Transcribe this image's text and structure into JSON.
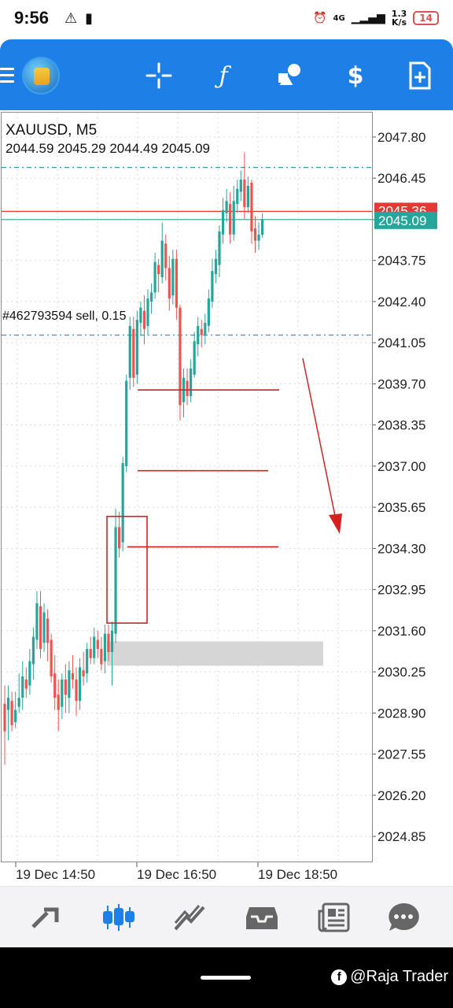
{
  "status_bar": {
    "time": "9:56",
    "left_icons": [
      "warning-icon",
      "battery-saver-icon"
    ],
    "network_speed_value": "1.3",
    "network_speed_unit": "K/s",
    "network_type": "4G",
    "battery": "14"
  },
  "toolbar": {
    "buttons": [
      "menu-icon",
      "app-logo",
      "crosshair-icon",
      "function-icon",
      "objects-icon",
      "trade-icon",
      "new-order-icon"
    ]
  },
  "chart": {
    "symbol": "XAUUSD, M5",
    "ohlc": "2044.59 2045.29 2044.49 2045.09",
    "order_label": "#462793594 sell, 0.15",
    "price_labels": [
      "2047.80",
      "2046.45",
      "2045.09",
      "2043.75",
      "2042.40",
      "2041.05",
      "2039.70",
      "2038.35",
      "2037.00",
      "2035.65",
      "2034.30",
      "2032.95",
      "2031.60",
      "2030.25",
      "2028.90",
      "2027.55",
      "2026.20",
      "2024.85"
    ],
    "current_bid": "2045.09",
    "current_ask": "2045.36",
    "time_labels": [
      "19 Dec 14:50",
      "19 Dec 16:50",
      "19 Dec 18:50"
    ],
    "colors": {
      "bull": "#26a69a",
      "bear": "#ef5350",
      "annotation": "#d62020",
      "bid_label": "#26a69a",
      "ask_label": "#e53935",
      "grid": "#d8d8d8",
      "zone": "#d6d6d6"
    }
  },
  "chart_data": {
    "type": "candlestick",
    "symbol": "XAUUSD",
    "timeframe": "M5",
    "ylim": [
      2024.0,
      2048.6
    ],
    "y_ticks": [
      2047.8,
      2046.45,
      2045.09,
      2043.75,
      2042.4,
      2041.05,
      2039.7,
      2038.35,
      2037.0,
      2035.65,
      2034.3,
      2032.95,
      2031.6,
      2030.25,
      2028.9,
      2027.55,
      2026.2,
      2024.85
    ],
    "x_labels": [
      "19 Dec 14:50",
      "19 Dec 16:50",
      "19 Dec 18:50"
    ],
    "candles": [
      [
        2029.2,
        2028.3,
        2027.2,
        2029.8
      ],
      [
        2029.0,
        2029.4,
        2028.0,
        2029.8
      ],
      [
        2029.3,
        2028.5,
        2028.3,
        2029.6
      ],
      [
        2028.6,
        2029.0,
        2028.4,
        2029.6
      ],
      [
        2029.1,
        2029.4,
        2028.9,
        2030.2
      ],
      [
        2029.4,
        2030.1,
        2029.0,
        2030.6
      ],
      [
        2030.0,
        2029.7,
        2029.4,
        2030.4
      ],
      [
        2029.8,
        2030.6,
        2029.5,
        2031.0
      ],
      [
        2030.5,
        2031.4,
        2030.0,
        2031.7
      ],
      [
        2031.3,
        2032.5,
        2031.0,
        2032.9
      ],
      [
        2032.4,
        2031.0,
        2030.7,
        2032.9
      ],
      [
        2031.2,
        2032.2,
        2030.9,
        2032.5
      ],
      [
        2032.0,
        2031.2,
        2030.6,
        2032.3
      ],
      [
        2031.3,
        2030.1,
        2029.9,
        2031.5
      ],
      [
        2030.2,
        2029.4,
        2029.0,
        2030.8
      ],
      [
        2029.5,
        2029.0,
        2028.3,
        2030.0
      ],
      [
        2029.1,
        2030.0,
        2028.7,
        2030.2
      ],
      [
        2030.0,
        2029.5,
        2028.9,
        2030.5
      ],
      [
        2029.4,
        2030.3,
        2028.9,
        2030.6
      ],
      [
        2030.2,
        2030.0,
        2029.7,
        2030.8
      ],
      [
        2030.0,
        2029.3,
        2028.8,
        2030.4
      ],
      [
        2029.3,
        2030.4,
        2029.0,
        2030.7
      ],
      [
        2030.3,
        2030.1,
        2029.8,
        2030.9
      ],
      [
        2030.2,
        2031.0,
        2029.9,
        2031.2
      ],
      [
        2031.0,
        2030.7,
        2030.5,
        2031.4
      ],
      [
        2030.7,
        2031.4,
        2030.5,
        2031.7
      ],
      [
        2031.3,
        2031.0,
        2030.7,
        2031.6
      ],
      [
        2031.0,
        2030.5,
        2030.3,
        2031.4
      ],
      [
        2030.6,
        2031.5,
        2030.2,
        2031.8
      ],
      [
        2031.5,
        2030.9,
        2030.6,
        2031.8
      ],
      [
        2030.9,
        2031.6,
        2029.8,
        2031.9
      ],
      [
        2031.5,
        2035.0,
        2031.2,
        2035.6
      ],
      [
        2035.0,
        2034.3,
        2034.0,
        2035.5
      ],
      [
        2034.5,
        2037.1,
        2034.2,
        2037.3
      ],
      [
        2037.0,
        2039.8,
        2036.8,
        2040.0
      ],
      [
        2039.9,
        2041.6,
        2039.5,
        2041.9
      ],
      [
        2041.5,
        2039.9,
        2039.6,
        2041.9
      ],
      [
        2040.0,
        2041.8,
        2039.7,
        2042.1
      ],
      [
        2041.7,
        2042.2,
        2041.3,
        2042.4
      ],
      [
        2042.1,
        2041.5,
        2041.0,
        2042.6
      ],
      [
        2041.6,
        2042.5,
        2041.3,
        2042.8
      ],
      [
        2042.4,
        2042.7,
        2042.0,
        2043.0
      ],
      [
        2042.7,
        2043.7,
        2042.5,
        2044.0
      ],
      [
        2043.6,
        2043.3,
        2042.7,
        2043.8
      ],
      [
        2043.2,
        2044.4,
        2043.0,
        2045.0
      ],
      [
        2044.3,
        2043.5,
        2043.1,
        2044.6
      ],
      [
        2043.5,
        2042.5,
        2042.1,
        2043.9
      ],
      [
        2042.6,
        2043.8,
        2042.3,
        2044.1
      ],
      [
        2043.8,
        2042.2,
        2041.8,
        2044.1
      ],
      [
        2042.2,
        2039.0,
        2038.5,
        2042.3
      ],
      [
        2039.1,
        2039.9,
        2038.6,
        2040.2
      ],
      [
        2039.8,
        2039.3,
        2039.0,
        2040.2
      ],
      [
        2039.3,
        2040.2,
        2039.1,
        2040.5
      ],
      [
        2040.0,
        2041.1,
        2039.9,
        2041.4
      ],
      [
        2041.0,
        2041.6,
        2040.6,
        2041.9
      ],
      [
        2041.5,
        2041.3,
        2040.9,
        2041.8
      ],
      [
        2041.3,
        2041.7,
        2041.0,
        2042.0
      ],
      [
        2041.6,
        2042.5,
        2041.4,
        2042.8
      ],
      [
        2042.4,
        2043.4,
        2042.2,
        2043.8
      ],
      [
        2043.3,
        2043.8,
        2043.0,
        2044.1
      ],
      [
        2043.6,
        2044.7,
        2043.2,
        2044.9
      ],
      [
        2044.6,
        2045.4,
        2044.3,
        2045.8
      ],
      [
        2045.3,
        2045.7,
        2045.0,
        2046.1
      ],
      [
        2045.6,
        2044.6,
        2044.3,
        2046.0
      ],
      [
        2044.6,
        2045.7,
        2044.4,
        2046.2
      ],
      [
        2045.6,
        2046.1,
        2045.3,
        2046.4
      ],
      [
        2046.0,
        2046.4,
        2045.7,
        2046.7
      ],
      [
        2046.4,
        2045.5,
        2045.1,
        2047.3
      ],
      [
        2045.5,
        2046.2,
        2045.3,
        2046.5
      ],
      [
        2046.3,
        2044.7,
        2044.3,
        2046.4
      ],
      [
        2044.8,
        2044.4,
        2044.0,
        2045.2
      ],
      [
        2044.4,
        2044.6,
        2044.1,
        2045.0
      ],
      [
        2044.59,
        2045.09,
        2044.49,
        2045.29
      ]
    ],
    "horizontal_lines": {
      "ask_price": 2045.36,
      "bid_price": 2045.09,
      "order_level": 2041.3,
      "dashed_high": 2046.8
    }
  },
  "annotations": {
    "targets": [
      2039.5,
      2036.85,
      2034.35
    ],
    "arrow": "down",
    "rectangle_range": [
      2031.85,
      2035.35
    ],
    "gray_zone_range": [
      2030.45,
      2031.25
    ]
  },
  "bottom_nav": {
    "items": [
      "quotes-icon",
      "chart-icon",
      "trade-icon",
      "history-icon",
      "news-icon",
      "messages-icon"
    ],
    "active": "chart-icon"
  },
  "watermark": {
    "text": "@Raja Trader"
  }
}
